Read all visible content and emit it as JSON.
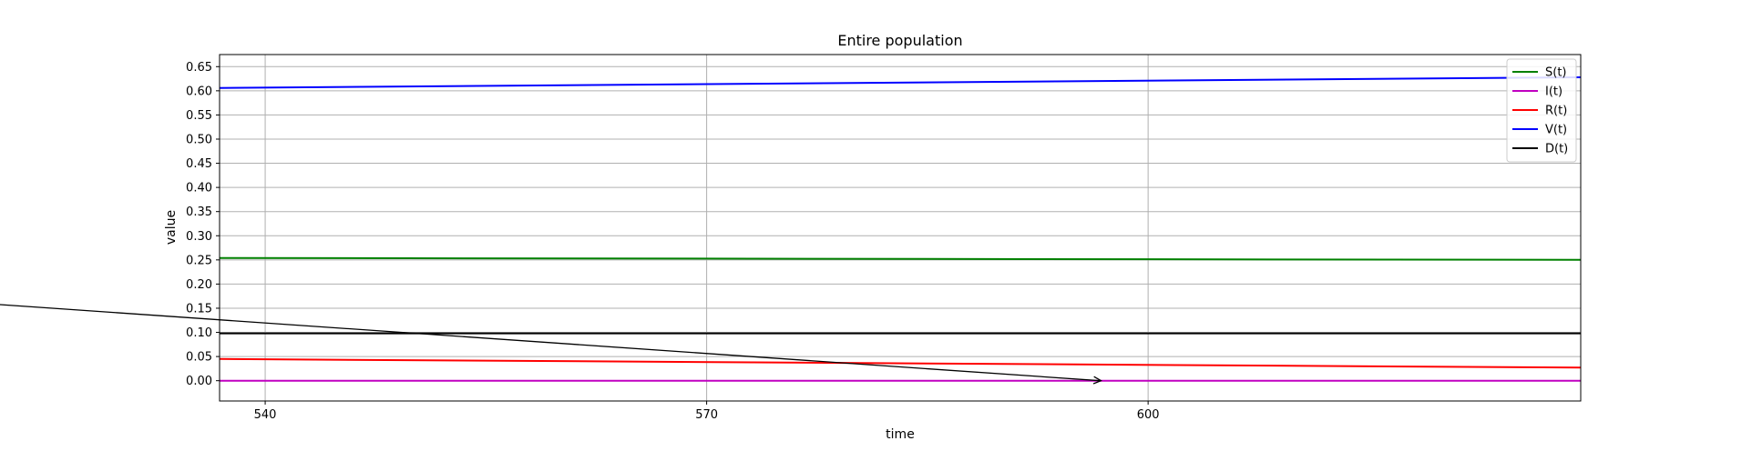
{
  "chart_data": {
    "type": "line",
    "title": "Entire population",
    "xlabel": "time",
    "ylabel": "value",
    "xlim": [
      536.9,
      629.4
    ],
    "ylim": [
      -0.042,
      0.675
    ],
    "xticks": [
      540,
      570,
      600
    ],
    "yticks": [
      0.0,
      0.05,
      0.1,
      0.15,
      0.2,
      0.25,
      0.3,
      0.35,
      0.4,
      0.45,
      0.5,
      0.55,
      0.6,
      0.65
    ],
    "ytick_labels": [
      "0.00",
      "0.05",
      "0.10",
      "0.15",
      "0.20",
      "0.25",
      "0.30",
      "0.35",
      "0.40",
      "0.45",
      "0.50",
      "0.55",
      "0.60",
      "0.65"
    ],
    "grid": true,
    "legend_position": "top-right",
    "x": [
      536.9,
      629.4
    ],
    "series": [
      {
        "name": "S(t)",
        "color": "#008000",
        "values": [
          0.254,
          0.25
        ]
      },
      {
        "name": "I(t)",
        "color": "#c000c0",
        "values": [
          0.0,
          0.0
        ]
      },
      {
        "name": "R(t)",
        "color": "#ff0000",
        "values": [
          0.045,
          0.027
        ]
      },
      {
        "name": "V(t)",
        "color": "#0000ff",
        "values": [
          0.606,
          0.628
        ]
      },
      {
        "name": "D(t)",
        "color": "#000000",
        "values": [
          0.098,
          0.098
        ]
      }
    ],
    "annotation": {
      "type": "arrow",
      "to": [
        596.8,
        0.0
      ],
      "color": "#000000"
    }
  }
}
